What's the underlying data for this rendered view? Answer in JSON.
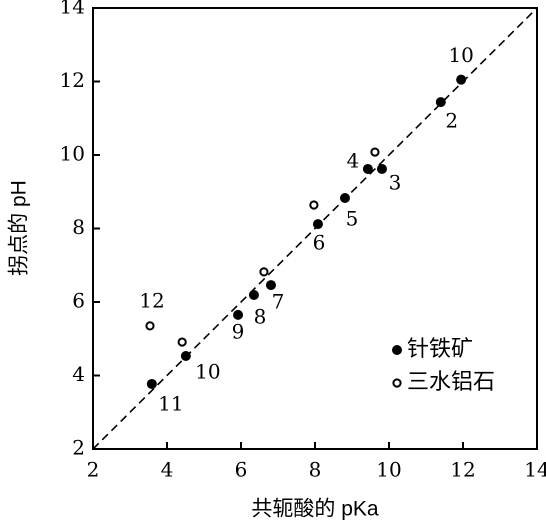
{
  "chart_data": {
    "type": "scatter",
    "x_label": "共轭酸的 pKa",
    "y_label": "拐点的 pH",
    "xlim": [
      2,
      14
    ],
    "ylim": [
      2,
      14
    ],
    "xticks": [
      2,
      4,
      6,
      8,
      10,
      12,
      14
    ],
    "yticks": [
      2,
      4,
      6,
      8,
      10,
      12,
      14
    ],
    "reference_line": true,
    "legend": "lower right",
    "series": [
      {
        "name": "针铁矿",
        "color": "#000000",
        "marker": "filled",
        "x": [
          11.95,
          11.4,
          9.43,
          9.81,
          8.81,
          8.08,
          6.81,
          6.35,
          5.92,
          4.51,
          3.59
        ],
        "values": [
          12.05,
          11.44,
          9.62,
          9.62,
          8.83,
          8.12,
          6.46,
          6.19,
          5.65,
          4.53,
          3.77
        ],
        "labels": [
          "10",
          "2",
          "4",
          "3",
          "5",
          "6",
          "7",
          "8",
          "9",
          "10",
          "11"
        ]
      },
      {
        "name": "三水铝石",
        "color": "#000000",
        "marker": "open",
        "x": [
          9.62,
          7.97,
          6.62,
          4.41,
          3.54
        ],
        "values": [
          10.08,
          8.64,
          6.82,
          4.91,
          5.35
        ],
        "labels": [
          null,
          null,
          null,
          null,
          "12"
        ]
      }
    ]
  }
}
